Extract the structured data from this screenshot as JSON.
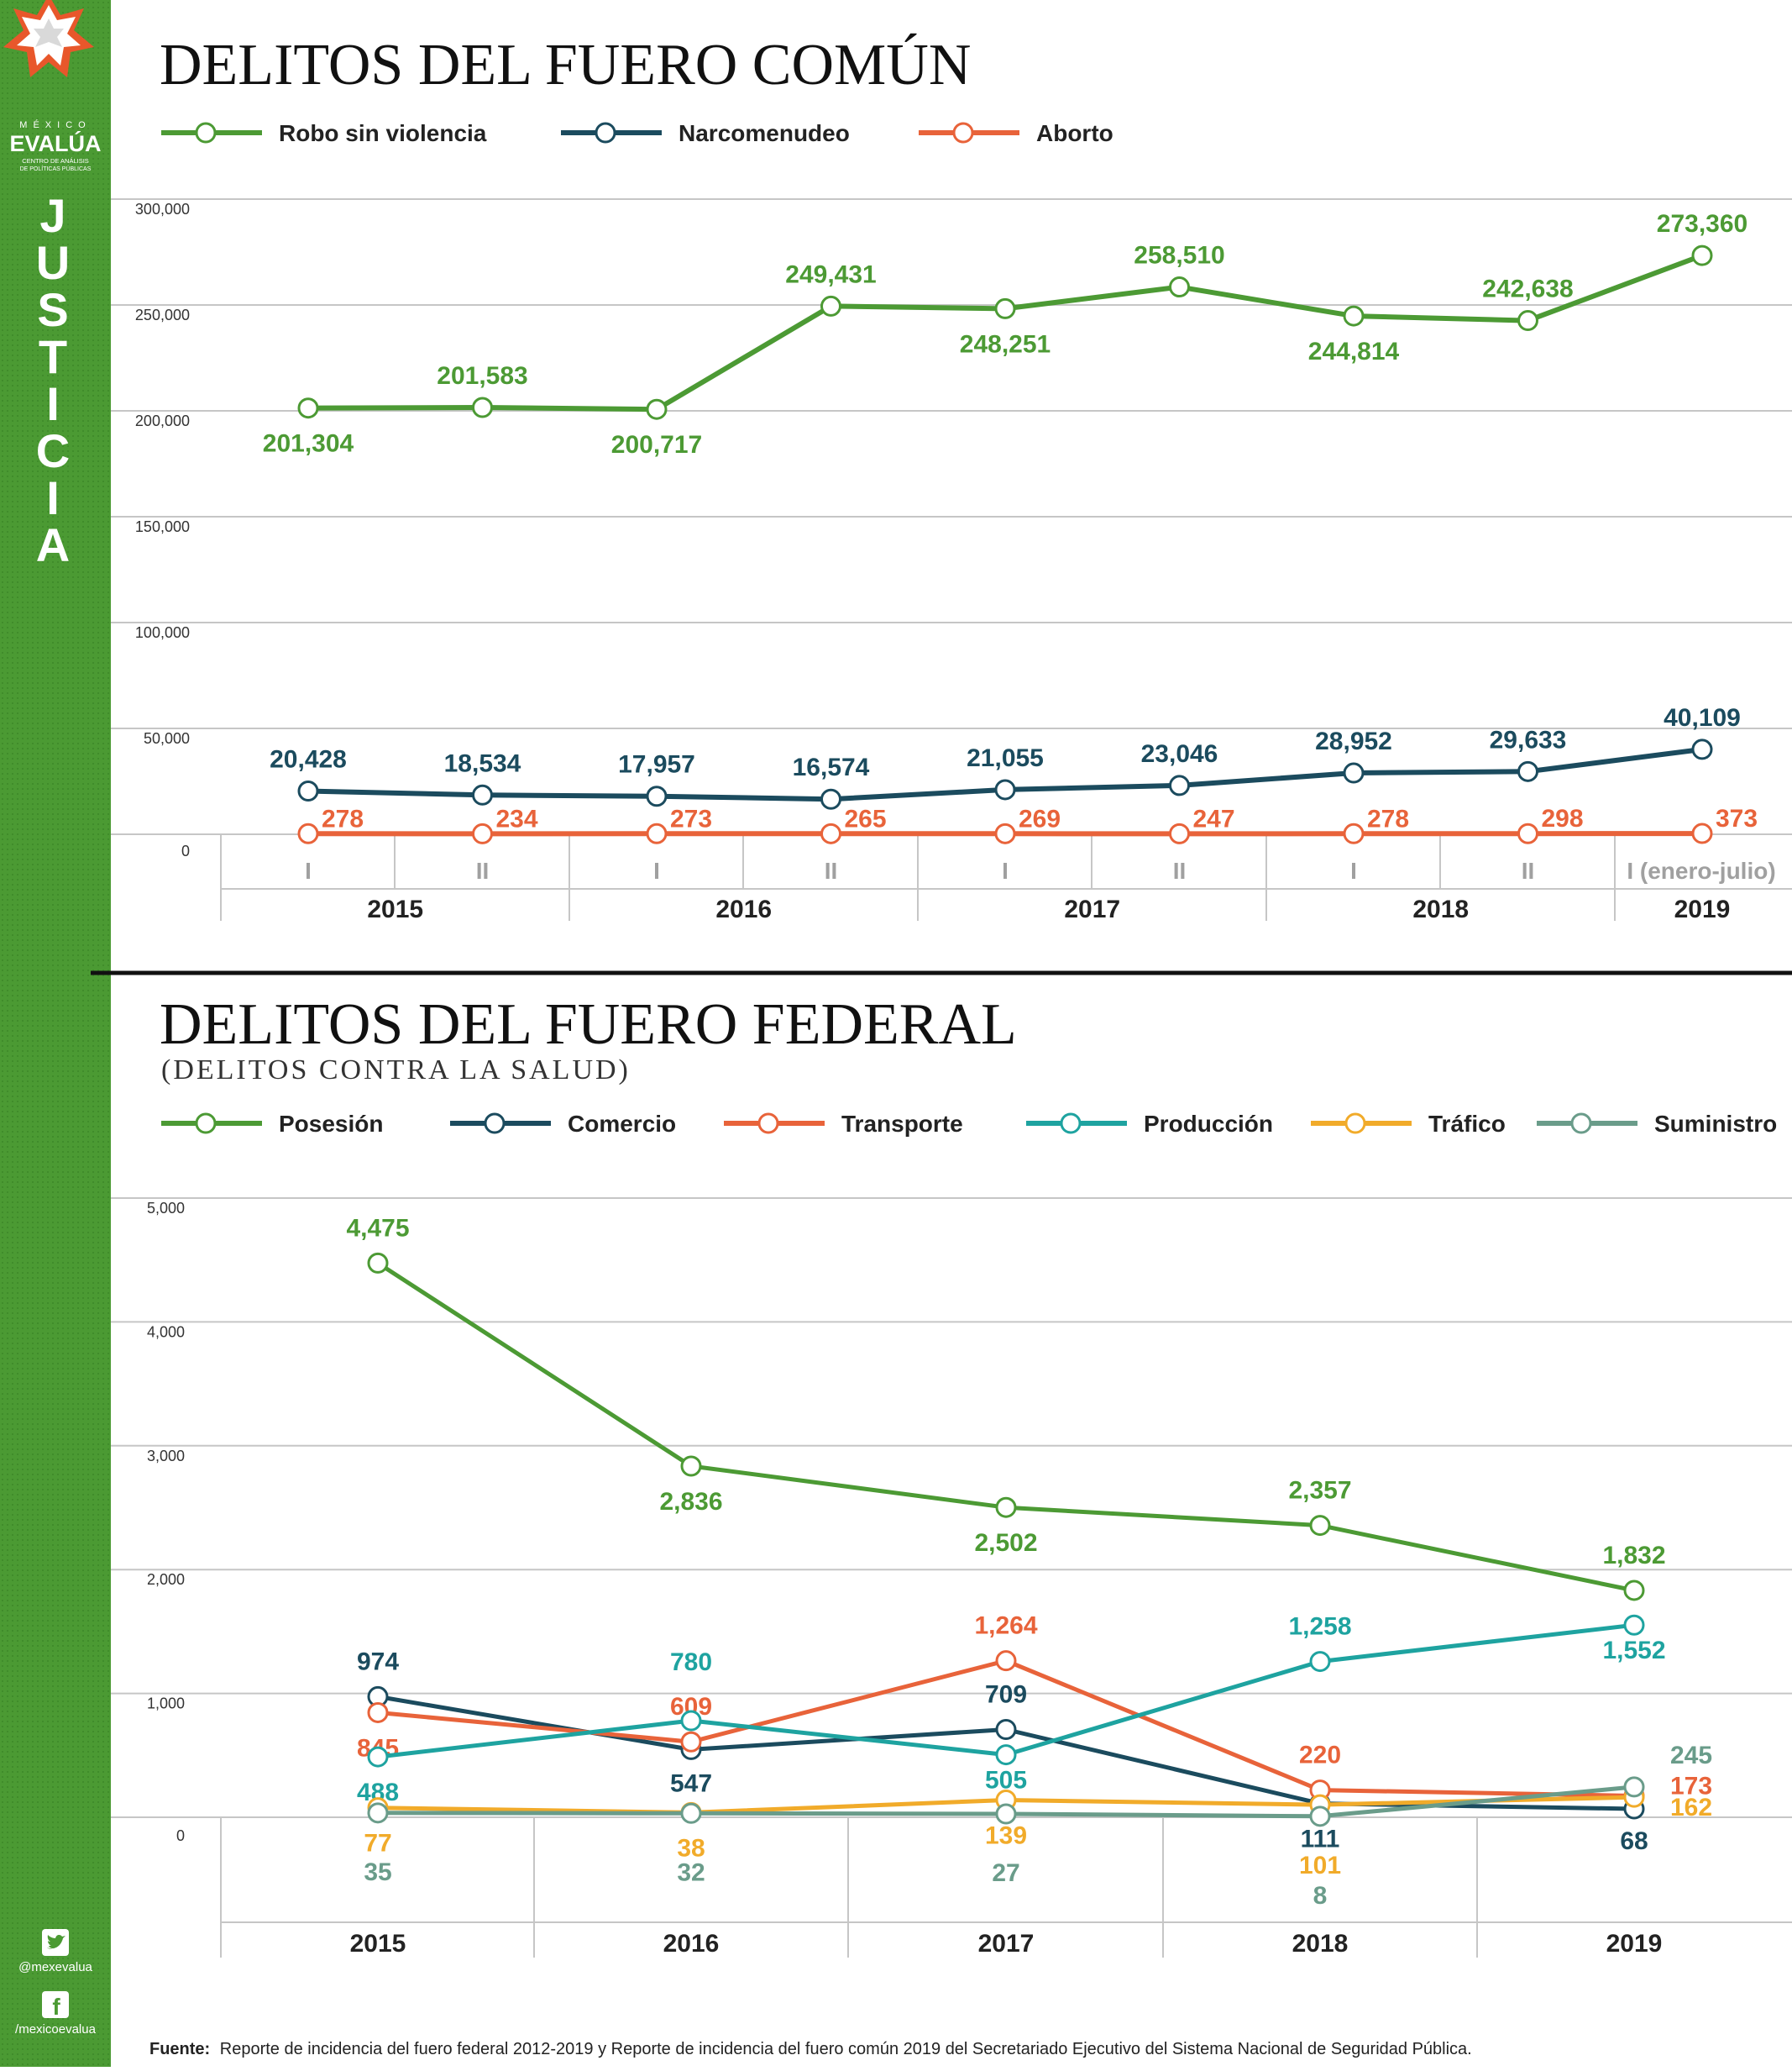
{
  "sidebar": {
    "brand_top": "MÉXICO",
    "brand_main": "EVALÚA",
    "brand_sub1": "CENTRO DE ANÁLISIS",
    "brand_sub2": "DE POLÍTICAS PÚBLICAS",
    "section_letters": [
      "J",
      "U",
      "S",
      "T",
      "I",
      "C",
      "I",
      "A"
    ],
    "twitter_handle": "@mexevalua",
    "facebook_handle": "/mexicoevalua",
    "icons": [
      "star-logo-icon",
      "twitter-icon",
      "facebook-icon"
    ]
  },
  "footer": {
    "source_label": "Fuente:",
    "source_text": "Reporte de incidencia del fuero federal 2012-2019 y Reporte de incidencia del fuero común 2019 del Secretariado Ejecutivo del Sistema Nacional de Seguridad Pública."
  },
  "colors": {
    "sidebar_green": "#4b9a33",
    "green": "#4c9a34",
    "navy": "#1b4b5e",
    "orange": "#e8633a",
    "teal": "#1ea3a0",
    "yellow": "#f1ab2a",
    "gray_green": "#6a9c8a",
    "star_orange": "#e8572b"
  },
  "chart_data": [
    {
      "type": "line",
      "title": "DELITOS DEL FUERO COMÚN",
      "subtitle": "",
      "xlabel": "",
      "ylabel": "",
      "ylim": [
        0,
        300000
      ],
      "y_ticks": [
        "0",
        "50,000",
        "100,000",
        "150,000",
        "200,000",
        "250,000",
        "300,000"
      ],
      "y_tick_values": [
        0,
        50000,
        100000,
        150000,
        200000,
        250000,
        300000
      ],
      "grid": true,
      "legend_position": "top-left",
      "x_sub_labels": [
        "I",
        "II",
        "I",
        "II",
        "I",
        "II",
        "I",
        "II",
        "I (enero-julio)"
      ],
      "x_groups": [
        {
          "label": "2015",
          "span": 2
        },
        {
          "label": "2016",
          "span": 2
        },
        {
          "label": "2017",
          "span": 2
        },
        {
          "label": "2018",
          "span": 2
        },
        {
          "label": "2019",
          "span": 1
        }
      ],
      "series": [
        {
          "name": "Robo sin violencia",
          "color": "#4c9a34",
          "values": [
            201304,
            201583,
            200717,
            249431,
            248251,
            258510,
            244814,
            242638,
            273360
          ],
          "labels": [
            "201,304",
            "201,583",
            "200,717",
            "249,431",
            "248,251",
            "258,510",
            "244,814",
            "242,638",
            "273,360"
          ],
          "label_pos": [
            "below",
            "above",
            "below",
            "above",
            "below",
            "above",
            "below",
            "above",
            "above"
          ]
        },
        {
          "name": "Narcomenudeo",
          "color": "#1b4b5e",
          "values": [
            20428,
            18534,
            17957,
            16574,
            21055,
            23046,
            28952,
            29633,
            40109
          ],
          "labels": [
            "20,428",
            "18,534",
            "17,957",
            "16,574",
            "21,055",
            "23,046",
            "28,952",
            "29,633",
            "40,109"
          ],
          "label_pos": [
            "above",
            "above",
            "above",
            "above",
            "above",
            "above",
            "above",
            "above",
            "above"
          ]
        },
        {
          "name": "Aborto",
          "color": "#e8633a",
          "values": [
            278,
            234,
            273,
            265,
            269,
            247,
            278,
            298,
            373
          ],
          "labels": [
            "278",
            "234",
            "273",
            "265",
            "269",
            "247",
            "278",
            "298",
            "373"
          ],
          "label_pos": [
            "right",
            "right",
            "right",
            "right",
            "right",
            "right",
            "right",
            "right",
            "right"
          ]
        }
      ]
    },
    {
      "type": "line",
      "title": "DELITOS DEL FUERO FEDERAL",
      "subtitle": "(DELITOS CONTRA LA SALUD)",
      "xlabel": "",
      "ylabel": "",
      "ylim": [
        0,
        5000
      ],
      "y_ticks": [
        "0",
        "1,000",
        "2,000",
        "3,000",
        "4,000",
        "5,000"
      ],
      "y_tick_values": [
        0,
        1000,
        2000,
        3000,
        4000,
        5000
      ],
      "grid": true,
      "legend_position": "top",
      "categories": [
        "2015",
        "2016",
        "2017",
        "2018",
        "2019"
      ],
      "series": [
        {
          "name": "Posesión",
          "color": "#4c9a34",
          "values": [
            4475,
            2836,
            2502,
            2357,
            1832
          ],
          "labels": [
            "4,475",
            "2,836",
            "2,502",
            "2,357",
            "1,832"
          ]
        },
        {
          "name": "Comercio",
          "color": "#1b4b5e",
          "values": [
            974,
            547,
            709,
            111,
            68
          ],
          "labels": [
            "974",
            "547",
            "709",
            "111",
            "68"
          ]
        },
        {
          "name": "Transporte",
          "color": "#e8633a",
          "values": [
            845,
            609,
            1264,
            220,
            173
          ],
          "labels": [
            "845",
            "609",
            "1,264",
            "220",
            "173"
          ]
        },
        {
          "name": "Producción",
          "color": "#1ea3a0",
          "values": [
            488,
            780,
            505,
            1258,
            1552
          ],
          "labels": [
            "488",
            "780",
            "505",
            "1,258",
            "1,552"
          ]
        },
        {
          "name": "Tráfico",
          "color": "#f1ab2a",
          "values": [
            77,
            38,
            139,
            101,
            162
          ],
          "labels": [
            "77",
            "38",
            "139",
            "101",
            "162"
          ]
        },
        {
          "name": "Suministro",
          "color": "#6a9c8a",
          "values": [
            35,
            32,
            27,
            8,
            245
          ],
          "labels": [
            "35",
            "32",
            "27",
            "8",
            "245"
          ]
        }
      ]
    }
  ]
}
